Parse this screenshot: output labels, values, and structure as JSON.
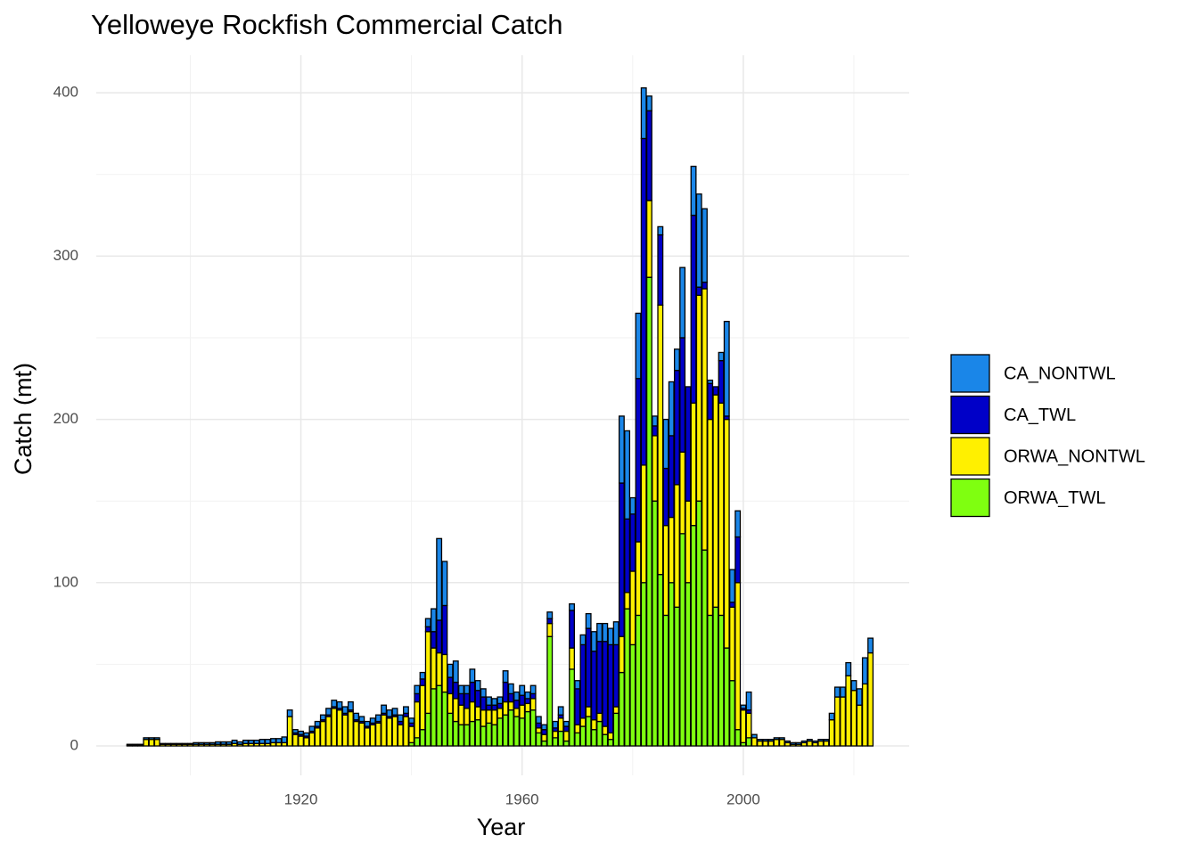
{
  "chart_data": {
    "type": "stacked_bar",
    "title": "Yelloweye Rockfish Commercial Catch",
    "x_label": "Year",
    "y_label": "Catch (mt)",
    "x": [
      1889,
      1890,
      1891,
      1892,
      1893,
      1894,
      1895,
      1896,
      1897,
      1898,
      1899,
      1900,
      1901,
      1902,
      1903,
      1904,
      1905,
      1906,
      1907,
      1908,
      1909,
      1910,
      1911,
      1912,
      1913,
      1914,
      1915,
      1916,
      1917,
      1918,
      1919,
      1920,
      1921,
      1922,
      1923,
      1924,
      1925,
      1926,
      1927,
      1928,
      1929,
      1930,
      1931,
      1932,
      1933,
      1934,
      1935,
      1936,
      1937,
      1938,
      1939,
      1940,
      1941,
      1942,
      1943,
      1944,
      1945,
      1946,
      1947,
      1948,
      1949,
      1950,
      1951,
      1952,
      1953,
      1954,
      1955,
      1956,
      1957,
      1958,
      1959,
      1960,
      1961,
      1962,
      1963,
      1964,
      1965,
      1966,
      1967,
      1968,
      1969,
      1970,
      1971,
      1972,
      1973,
      1974,
      1975,
      1976,
      1977,
      1978,
      1979,
      1980,
      1981,
      1982,
      1983,
      1984,
      1985,
      1986,
      1987,
      1988,
      1989,
      1990,
      1991,
      1992,
      1993,
      1994,
      1995,
      1996,
      1997,
      1998,
      1999,
      2000,
      2001,
      2002,
      2003,
      2004,
      2005,
      2006,
      2007,
      2008,
      2009,
      2010,
      2011,
      2012,
      2013,
      2014,
      2015,
      2016,
      2017,
      2018,
      2019,
      2020,
      2021,
      2022,
      2023
    ],
    "series": [
      {
        "name": "CA_NONTWL",
        "color": "#1a86e8",
        "values": [
          0.5,
          0.5,
          0.5,
          1,
          1,
          1,
          0.5,
          0.5,
          0.5,
          0.5,
          0.5,
          0.5,
          1,
          1,
          1,
          1,
          1.5,
          1.5,
          1.5,
          2,
          1.5,
          2,
          2,
          2,
          2.5,
          2.5,
          2.5,
          2.5,
          3.5,
          4,
          2,
          2,
          2,
          3,
          3,
          3,
          4,
          4,
          4,
          4,
          5,
          4,
          3,
          3,
          3,
          4,
          5,
          4,
          4,
          4,
          4,
          3,
          5,
          4,
          5,
          14,
          50,
          27,
          8,
          13,
          5,
          5,
          8,
          6,
          5,
          5,
          4,
          4,
          7,
          6,
          5,
          6,
          4,
          5,
          4,
          3,
          4,
          4,
          5,
          3,
          4,
          5,
          6,
          9,
          12,
          11,
          11,
          10,
          14,
          41,
          54,
          10,
          40,
          31,
          9,
          6,
          5,
          30,
          33,
          13,
          43,
          0,
          30,
          57,
          45,
          2,
          0,
          5,
          58,
          20,
          16,
          2,
          11,
          2,
          1,
          1,
          1,
          1,
          1,
          1,
          1,
          1,
          1,
          1,
          1,
          1,
          1,
          4,
          6,
          6,
          8,
          6,
          10,
          16,
          9
        ]
      },
      {
        "name": "CA_TWL",
        "color": "#0000c8",
        "values": [
          0,
          0,
          0,
          0,
          0,
          0,
          0,
          0,
          0,
          0,
          0,
          0,
          0,
          0,
          0,
          0,
          0,
          0,
          0,
          0,
          0,
          0,
          0,
          0,
          0,
          0,
          0,
          0,
          0,
          0,
          1,
          1,
          1,
          1,
          1,
          1,
          1,
          1,
          1,
          1,
          1,
          1,
          1,
          1,
          1,
          1,
          1,
          1,
          1,
          2,
          2,
          2,
          5,
          4,
          3,
          10,
          20,
          30,
          10,
          10,
          7,
          9,
          12,
          10,
          8,
          3,
          3,
          3,
          12,
          5,
          5,
          6,
          3,
          3,
          3,
          3,
          3,
          2,
          2,
          3,
          23,
          22,
          45,
          48,
          42,
          44,
          52,
          54,
          38,
          94,
          45,
          35,
          100,
          200,
          55,
          6,
          43,
          35,
          50,
          70,
          70,
          70,
          115,
          5,
          4,
          22,
          5,
          26,
          2,
          3,
          28,
          1,
          2,
          0,
          0,
          0,
          0,
          0,
          0,
          0,
          0,
          0,
          0,
          0,
          0,
          0,
          0,
          0,
          0,
          0,
          0,
          0,
          0,
          0,
          0
        ]
      },
      {
        "name": "ORWA_NONTWL",
        "color": "#fff000",
        "values": [
          0.5,
          0.5,
          0.5,
          4,
          4,
          4,
          1,
          1,
          1,
          1,
          1,
          1,
          1,
          1,
          1,
          1,
          1,
          1,
          1,
          1.5,
          1,
          1.5,
          1.5,
          1.5,
          1.5,
          1.5,
          2,
          2,
          2,
          18,
          7,
          6,
          5,
          8,
          11,
          15,
          18,
          23,
          22,
          19,
          21,
          15,
          14,
          11,
          13,
          14,
          19,
          17,
          18,
          13,
          18,
          10,
          22,
          27,
          50,
          25,
          20,
          23,
          12,
          14,
          12,
          10,
          12,
          8,
          10,
          8,
          9,
          6,
          8,
          5,
          5,
          8,
          5,
          7,
          3,
          4,
          8,
          4,
          8,
          6,
          13,
          5,
          5,
          6,
          6,
          5,
          5,
          4,
          4,
          22,
          10,
          45,
          45,
          72,
          47,
          40,
          165,
          55,
          40,
          75,
          50,
          50,
          75,
          126,
          160,
          120,
          130,
          130,
          140,
          45,
          90,
          20,
          15,
          5,
          3,
          3,
          3,
          4,
          4,
          2,
          1,
          1,
          2,
          3,
          2,
          3,
          3,
          16,
          30,
          30,
          43,
          34,
          25,
          38,
          57
        ]
      },
      {
        "name": "ORWA_TWL",
        "color": "#7fff10",
        "values": [
          0,
          0,
          0,
          0,
          0,
          0,
          0,
          0,
          0,
          0,
          0,
          0,
          0,
          0,
          0,
          0,
          0,
          0,
          0,
          0,
          0,
          0,
          0,
          0,
          0,
          0,
          0,
          0,
          0,
          0,
          0,
          0,
          0,
          0,
          0,
          0,
          0,
          0,
          0,
          0,
          0,
          0,
          0,
          0,
          0,
          0,
          0,
          0,
          0,
          0,
          0,
          2,
          5,
          10,
          20,
          35,
          37,
          33,
          20,
          15,
          13,
          13,
          15,
          16,
          12,
          14,
          13,
          17,
          19,
          22,
          18,
          17,
          21,
          22,
          8,
          3,
          67,
          5,
          9,
          3,
          47,
          8,
          12,
          18,
          10,
          15,
          7,
          4,
          20,
          45,
          84,
          62,
          80,
          100,
          287,
          150,
          105,
          80,
          100,
          85,
          130,
          100,
          135,
          150,
          120,
          80,
          85,
          80,
          60,
          40,
          10,
          2,
          5,
          0,
          0,
          0,
          0,
          0,
          0,
          0,
          0,
          0,
          0,
          0,
          0,
          0,
          0,
          0,
          0,
          0,
          0,
          0,
          0,
          0,
          0
        ]
      }
    ],
    "xlim": [
      1883,
      2030
    ],
    "ylim": [
      -18,
      423
    ],
    "xticks": [
      1920,
      1960,
      2000
    ],
    "yticks": [
      0,
      100,
      200,
      300,
      400
    ],
    "x_minor_grid": [
      1900,
      1940,
      1980,
      2020
    ],
    "y_minor_grid": [
      50,
      150,
      250,
      350
    ],
    "grid": true
  }
}
